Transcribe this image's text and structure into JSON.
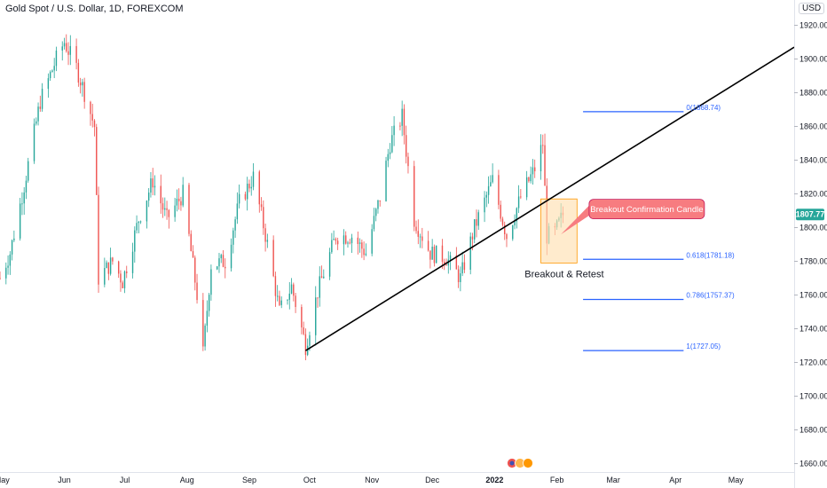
{
  "header": {
    "title": "Gold Spot / U.S. Dollar, 1D, FOREXCOM",
    "currency": "USD"
  },
  "chart_data": {
    "type": "candlestick",
    "instrument": "Gold Spot / U.S. Dollar",
    "interval": "1D",
    "exchange": "FOREXCOM",
    "y_ticks": [
      1660,
      1680,
      1700,
      1720,
      1740,
      1760,
      1780,
      1800,
      1820,
      1840,
      1860,
      1880,
      1900,
      1920
    ],
    "x_ticks": [
      {
        "label": "May",
        "date": "2021-05-01"
      },
      {
        "label": "Jun",
        "date": "2021-06-01"
      },
      {
        "label": "Jul",
        "date": "2021-07-01"
      },
      {
        "label": "Aug",
        "date": "2021-08-01"
      },
      {
        "label": "Sep",
        "date": "2021-09-01"
      },
      {
        "label": "Oct",
        "date": "2021-10-01"
      },
      {
        "label": "Nov",
        "date": "2021-11-01"
      },
      {
        "label": "Dec",
        "date": "2021-12-01"
      },
      {
        "label": "2022",
        "date": "2022-01-01"
      },
      {
        "label": "Feb",
        "date": "2022-02-01"
      },
      {
        "label": "Mar",
        "date": "2022-03-01"
      },
      {
        "label": "Apr",
        "date": "2022-04-01"
      },
      {
        "label": "May",
        "date": "2022-05-01"
      }
    ],
    "ylim": [
      1655,
      1935
    ],
    "xlim": [
      "2021-04-30",
      "2022-05-30"
    ],
    "last_price": "1807.77",
    "price_path": [
      [
        "2021-04-30",
        1770
      ],
      [
        "2021-05-05",
        1785
      ],
      [
        "2021-05-12",
        1825
      ],
      [
        "2021-05-20",
        1875
      ],
      [
        "2021-05-28",
        1900
      ],
      [
        "2021-06-01",
        1910
      ],
      [
        "2021-06-07",
        1895
      ],
      [
        "2021-06-11",
        1880
      ],
      [
        "2021-06-16",
        1860
      ],
      [
        "2021-06-18",
        1770
      ],
      [
        "2021-06-25",
        1780
      ],
      [
        "2021-06-30",
        1768
      ],
      [
        "2021-07-08",
        1805
      ],
      [
        "2021-07-15",
        1828
      ],
      [
        "2021-07-22",
        1805
      ],
      [
        "2021-07-30",
        1820
      ],
      [
        "2021-08-06",
        1760
      ],
      [
        "2021-08-09",
        1725
      ],
      [
        "2021-08-13",
        1778
      ],
      [
        "2021-08-20",
        1780
      ],
      [
        "2021-08-27",
        1815
      ],
      [
        "2021-09-03",
        1830
      ],
      [
        "2021-09-10",
        1790
      ],
      [
        "2021-09-16",
        1750
      ],
      [
        "2021-09-22",
        1765
      ],
      [
        "2021-09-29",
        1730
      ],
      [
        "2021-10-05",
        1762
      ],
      [
        "2021-10-14",
        1795
      ],
      [
        "2021-10-22",
        1795
      ],
      [
        "2021-10-29",
        1785
      ],
      [
        "2021-11-05",
        1818
      ],
      [
        "2021-11-10",
        1850
      ],
      [
        "2021-11-16",
        1866
      ],
      [
        "2021-11-22",
        1805
      ],
      [
        "2021-11-30",
        1785
      ],
      [
        "2021-12-08",
        1782
      ],
      [
        "2021-12-15",
        1770
      ],
      [
        "2021-12-22",
        1800
      ],
      [
        "2021-12-31",
        1828
      ],
      [
        "2022-01-07",
        1795
      ],
      [
        "2022-01-14",
        1818
      ],
      [
        "2022-01-21",
        1835
      ],
      [
        "2022-01-25",
        1850
      ],
      [
        "2022-01-27",
        1795
      ],
      [
        "2022-01-31",
        1797
      ],
      [
        "2022-02-03",
        1805
      ],
      [
        "2022-02-04",
        1807.77
      ]
    ],
    "trendline": {
      "start": [
        "2021-09-29",
        1727
      ],
      "end": [
        "2022-05-30",
        1907
      ]
    },
    "fibonacci": [
      {
        "label": "0(1868.74)",
        "value": 1868.74
      },
      {
        "label": "0.618(1781.18)",
        "value": 1781.18
      },
      {
        "label": "0.786(1757.37)",
        "value": 1757.37
      },
      {
        "label": "1(1727.05)",
        "value": 1727.05
      }
    ],
    "fib_x_range": [
      "2022-02-14",
      "2022-04-05"
    ],
    "highlight_box": {
      "x": [
        "2022-01-24",
        "2022-02-11"
      ],
      "y": [
        1779,
        1817
      ]
    },
    "annotations": {
      "breakout_retest": "Breakout & Retest",
      "callout": "Breakout Confirmation Candle"
    },
    "colors": {
      "up": "#26a69a",
      "down": "#ef5350",
      "trendline": "#000000",
      "fib": "#2962ff",
      "box_fill": "#ffe0b2",
      "box_stroke": "#ff9800",
      "callout": "#f77c80",
      "price_tag": "#26a69a"
    }
  }
}
